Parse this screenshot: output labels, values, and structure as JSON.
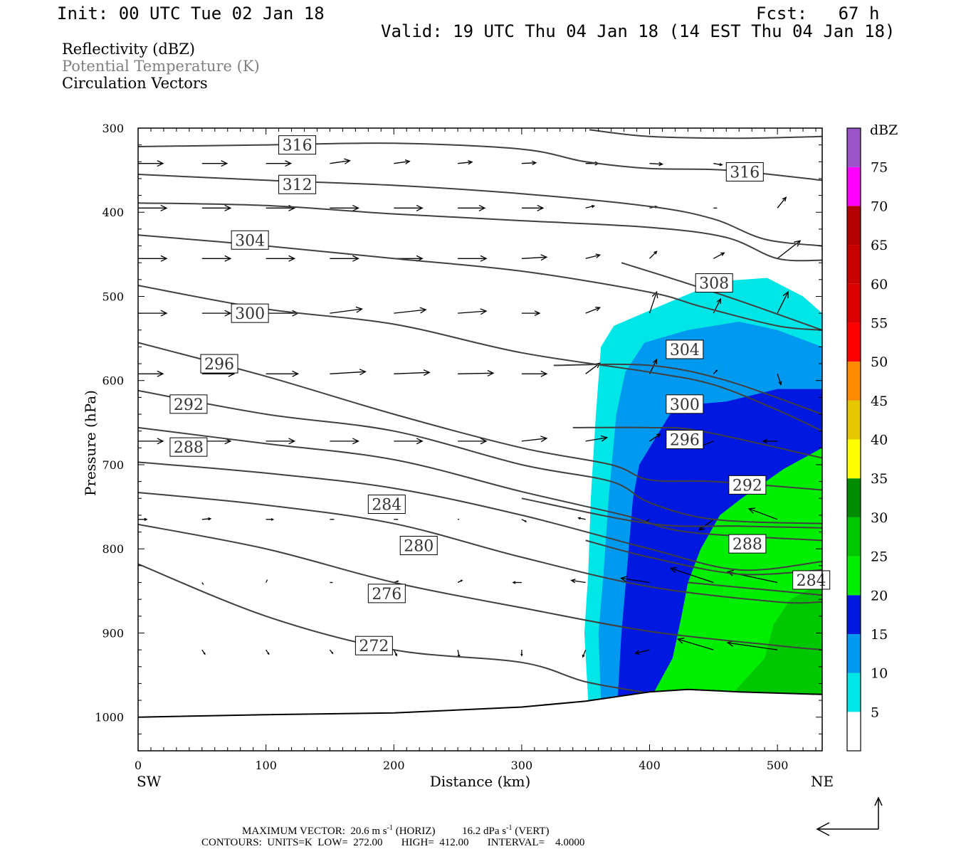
{
  "header": {
    "init": "Init: 00 UTC Tue 02 Jan 18",
    "fcst": "Fcst:   67 h",
    "valid": "Valid: 19 UTC Thu 04 Jan 18 (14 EST Thu 04 Jan 18)"
  },
  "fields": [
    "Reflectivity (dBZ)",
    "Potential Temperature (K)",
    "Circulation Vectors"
  ],
  "colors": {
    "c5": "#00e6e6",
    "c10": "#0099f0",
    "c15": "#0018e0",
    "c20": "#00ef00",
    "c25": "#00c800",
    "c30": "#008c00",
    "c35": "#ffff00",
    "c40": "#e6c800",
    "c45": "#ff8c00",
    "c50": "#ff0000",
    "c55": "#dc0000",
    "c60": "#c80000",
    "c65": "#b40000",
    "c70": "#ff00ff",
    "c75": "#9955c8",
    "theta_line": "#404040"
  },
  "chart_data": {
    "type": "cross-section",
    "x_axis": {
      "label": "Distance (km)",
      "range": [
        0,
        535
      ],
      "ticks": [
        0,
        100,
        200,
        300,
        400,
        500
      ],
      "left_end": "SW",
      "right_end": "NE"
    },
    "y_axis": {
      "label": "Pressure (hPa)",
      "range": [
        300,
        1040
      ],
      "ticks": [
        300,
        400,
        500,
        600,
        700,
        800,
        900,
        1000
      ],
      "inverted": true
    },
    "colorbar": {
      "title": "dBZ",
      "levels": [
        5,
        10,
        15,
        20,
        25,
        30,
        35,
        40,
        45,
        50,
        55,
        60,
        65,
        70,
        75
      ]
    },
    "reflectivity_regions": [
      {
        "level": 5,
        "points": [
          [
            352,
            980
          ],
          [
            349,
            900
          ],
          [
            352,
            830
          ],
          [
            354,
            740
          ],
          [
            358,
            640
          ],
          [
            362,
            560
          ],
          [
            372,
            535
          ],
          [
            392,
            522
          ],
          [
            426,
            500
          ],
          [
            455,
            482
          ],
          [
            492,
            478
          ],
          [
            520,
            500
          ],
          [
            535,
            520
          ],
          [
            535,
            980
          ]
        ]
      },
      {
        "level": 10,
        "points": [
          [
            362,
            980
          ],
          [
            360,
            900
          ],
          [
            364,
            830
          ],
          [
            368,
            740
          ],
          [
            374,
            640
          ],
          [
            381,
            590
          ],
          [
            396,
            555
          ],
          [
            430,
            540
          ],
          [
            470,
            530
          ],
          [
            500,
            540
          ],
          [
            535,
            560
          ],
          [
            535,
            980
          ]
        ]
      },
      {
        "level": 15,
        "points": [
          [
            375,
            980
          ],
          [
            378,
            900
          ],
          [
            382,
            830
          ],
          [
            387,
            740
          ],
          [
            392,
            700
          ],
          [
            420,
            630
          ],
          [
            460,
            625
          ],
          [
            500,
            610
          ],
          [
            535,
            610
          ],
          [
            535,
            980
          ]
        ]
      },
      {
        "level": 20,
        "points": [
          [
            400,
            980
          ],
          [
            418,
            930
          ],
          [
            425,
            880
          ],
          [
            430,
            840
          ],
          [
            440,
            800
          ],
          [
            455,
            760
          ],
          [
            472,
            740
          ],
          [
            505,
            705
          ],
          [
            535,
            680
          ],
          [
            535,
            985
          ]
        ]
      },
      {
        "level": 25,
        "points": [
          [
            460,
            980
          ],
          [
            490,
            930
          ],
          [
            497,
            890
          ],
          [
            510,
            860
          ],
          [
            535,
            840
          ],
          [
            535,
            985
          ]
        ]
      }
    ],
    "theta_contours": [
      {
        "value": 316,
        "label_pos": [
          110,
          320
        ],
        "points": [
          [
            0,
            322
          ],
          [
            100,
            320
          ],
          [
            200,
            318
          ],
          [
            300,
            325
          ],
          [
            350,
            340
          ],
          [
            400,
            348
          ],
          [
            460,
            350
          ],
          [
            535,
            362
          ]
        ]
      },
      {
        "value": 316,
        "label_pos": [
          460,
          352
        ],
        "points": [
          [
            353,
            302
          ],
          [
            400,
            310
          ],
          [
            470,
            312
          ],
          [
            535,
            310
          ]
        ]
      },
      {
        "value": 312,
        "label_pos": [
          110,
          367
        ],
        "points": [
          [
            0,
            355
          ],
          [
            100,
            362
          ],
          [
            200,
            368
          ],
          [
            300,
            378
          ],
          [
            400,
            393
          ],
          [
            450,
            408
          ],
          [
            490,
            432
          ],
          [
            535,
            440
          ]
        ]
      },
      {
        "value": 304,
        "label_pos": [
          73,
          433
        ],
        "points": [
          [
            0,
            389
          ],
          [
            100,
            392
          ],
          [
            200,
            402
          ],
          [
            300,
            410
          ],
          [
            400,
            418
          ],
          [
            460,
            430
          ],
          [
            500,
            455
          ],
          [
            535,
            457
          ]
        ]
      },
      {
        "value": 308,
        "label_pos": [
          436,
          484
        ],
        "points": [
          [
            0,
            427
          ],
          [
            100,
            440
          ],
          [
            200,
            455
          ],
          [
            300,
            470
          ],
          [
            400,
            495
          ],
          [
            440,
            512
          ],
          [
            500,
            535
          ],
          [
            535,
            540
          ]
        ]
      },
      {
        "value": 300,
        "label_pos": [
          73,
          520
        ],
        "points": [
          [
            0,
            487
          ],
          [
            100,
            515
          ],
          [
            200,
            533
          ],
          [
            300,
            567
          ],
          [
            400,
            590
          ],
          [
            450,
            605
          ],
          [
            500,
            635
          ],
          [
            535,
            660
          ]
        ]
      },
      {
        "value": 304,
        "label_pos": [
          413,
          563
        ],
        "points": [
          [
            378,
            460
          ],
          [
            420,
            480
          ],
          [
            470,
            505
          ],
          [
            535,
            540
          ]
        ]
      },
      {
        "value": 296,
        "label_pos": [
          49,
          580
        ],
        "points": [
          [
            0,
            555
          ],
          [
            100,
            595
          ],
          [
            200,
            640
          ],
          [
            300,
            680
          ],
          [
            370,
            700
          ],
          [
            400,
            718
          ],
          [
            450,
            720
          ],
          [
            535,
            730
          ]
        ]
      },
      {
        "value": 300,
        "label_pos": [
          413,
          628
        ],
        "points": [
          [
            325,
            582
          ],
          [
            400,
            582
          ],
          [
            460,
            600
          ],
          [
            535,
            640
          ]
        ]
      },
      {
        "value": 292,
        "label_pos": [
          25,
          628
        ],
        "points": [
          [
            0,
            612
          ],
          [
            100,
            640
          ],
          [
            200,
            660
          ],
          [
            300,
            700
          ],
          [
            370,
            720
          ],
          [
            400,
            745
          ],
          [
            450,
            765
          ],
          [
            535,
            770
          ]
        ]
      },
      {
        "value": 296,
        "label_pos": [
          413,
          670
        ],
        "points": [
          [
            340,
            656
          ],
          [
            400,
            656
          ],
          [
            440,
            660
          ],
          [
            535,
            692
          ]
        ]
      },
      {
        "value": 288,
        "label_pos": [
          25,
          679
        ],
        "points": [
          [
            0,
            656
          ],
          [
            100,
            675
          ],
          [
            200,
            694
          ],
          [
            300,
            732
          ],
          [
            380,
            760
          ],
          [
            430,
            780
          ],
          [
            535,
            790
          ]
        ]
      },
      {
        "value": 292,
        "label_pos": [
          462,
          724
        ],
        "points": [
          [
            300,
            740
          ],
          [
            400,
            770
          ],
          [
            470,
            773
          ],
          [
            535,
            775
          ]
        ]
      },
      {
        "value": 284,
        "label_pos": [
          180,
          747
        ],
        "points": [
          [
            0,
            697
          ],
          [
            100,
            710
          ],
          [
            200,
            728
          ],
          [
            300,
            760
          ],
          [
            400,
            800
          ],
          [
            470,
            825
          ],
          [
            535,
            815
          ]
        ]
      },
      {
        "value": 288,
        "label_pos": [
          462,
          794
        ],
        "points": [
          [
            350,
            790
          ],
          [
            400,
            810
          ],
          [
            470,
            830
          ],
          [
            535,
            825
          ]
        ]
      },
      {
        "value": 280,
        "label_pos": [
          205,
          796
        ],
        "points": [
          [
            0,
            733
          ],
          [
            100,
            748
          ],
          [
            200,
            770
          ],
          [
            300,
            810
          ],
          [
            400,
            845
          ],
          [
            500,
            863
          ],
          [
            535,
            863
          ]
        ]
      },
      {
        "value": 284,
        "label_pos": [
          512,
          837
        ],
        "points": [
          [
            430,
            840
          ],
          [
            500,
            850
          ],
          [
            535,
            855
          ]
        ]
      },
      {
        "value": 276,
        "label_pos": [
          180,
          853
        ],
        "points": [
          [
            0,
            771
          ],
          [
            100,
            800
          ],
          [
            200,
            840
          ],
          [
            300,
            870
          ],
          [
            400,
            898
          ],
          [
            500,
            915
          ],
          [
            535,
            920
          ]
        ]
      },
      {
        "value": 272,
        "label_pos": [
          170,
          915
        ],
        "points": [
          [
            0,
            818
          ],
          [
            100,
            880
          ],
          [
            200,
            920
          ],
          [
            300,
            935
          ],
          [
            350,
            958
          ],
          [
            400,
            972
          ],
          [
            415,
            982
          ]
        ]
      }
    ],
    "terrain_surface": [
      [
        0,
        1000
      ],
      [
        100,
        997
      ],
      [
        200,
        995
      ],
      [
        300,
        988
      ],
      [
        350,
        981
      ],
      [
        400,
        970
      ],
      [
        430,
        967
      ],
      [
        470,
        970
      ],
      [
        535,
        973
      ]
    ],
    "max_vector": {
      "text_prefix": "MAXIMUM VECTOR:  20.6 m s",
      "text_mid": " (HORIZ)          16.2 dPa s",
      "text_end": " (VERT)",
      "superscript": "-1"
    },
    "contour_info": "CONTOURS:  UNITS=K  LOW=  272.00       HIGH=  412.00       INTERVAL=    4.0000"
  }
}
